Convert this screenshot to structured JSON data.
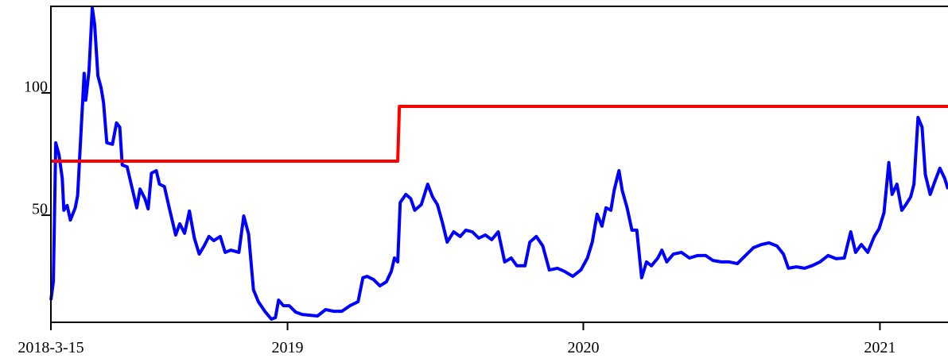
{
  "chart_data": {
    "type": "line",
    "xlim": [
      "2018-03-15",
      "2021-03-26"
    ],
    "xticks": [
      {
        "value": "2018-03-15",
        "label": "2018-3-15"
      },
      {
        "value": "2019-01-01",
        "label": "2019"
      },
      {
        "value": "2020-01-01",
        "label": "2020"
      },
      {
        "value": "2021-01-01",
        "label": "2021"
      }
    ],
    "ylim": [
      6.2,
      135.4
    ],
    "yticks": [
      50,
      100
    ],
    "series": [
      {
        "color": "#0000ff",
        "x": [
          "2018-03-15",
          "2018-03-18",
          "2018-03-21",
          "2018-03-25",
          "2018-03-29",
          "2018-03-31",
          "2018-04-04",
          "2018-04-08",
          "2018-04-14",
          "2018-04-17",
          "2018-04-22",
          "2018-04-25",
          "2018-04-27",
          "2018-05-01",
          "2018-05-05",
          "2018-05-08",
          "2018-05-12",
          "2018-05-16",
          "2018-05-19",
          "2018-05-23",
          "2018-05-30",
          "2018-06-04",
          "2018-06-08",
          "2018-06-11",
          "2018-06-17",
          "2018-06-24",
          "2018-06-29",
          "2018-07-03",
          "2018-07-09",
          "2018-07-13",
          "2018-07-17",
          "2018-07-23",
          "2018-07-27",
          "2018-08-02",
          "2018-08-08",
          "2018-08-16",
          "2018-08-21",
          "2018-08-27",
          "2018-09-02",
          "2018-09-08",
          "2018-09-14",
          "2018-09-20",
          "2018-09-26",
          "2018-10-02",
          "2018-10-10",
          "2018-10-16",
          "2018-10-23",
          "2018-11-02",
          "2018-11-08",
          "2018-11-14",
          "2018-11-20",
          "2018-11-26",
          "2018-12-04",
          "2018-12-12",
          "2018-12-17",
          "2018-12-21",
          "2018-12-27",
          "2019-01-03",
          "2019-01-11",
          "2019-01-19",
          "2019-01-29",
          "2019-02-07",
          "2019-02-17",
          "2019-02-27",
          "2019-03-09",
          "2019-03-19",
          "2019-03-29",
          "2019-04-04",
          "2019-04-09",
          "2019-04-17",
          "2019-04-25",
          "2019-05-03",
          "2019-05-09",
          "2019-05-13",
          "2019-05-17",
          "2019-05-20",
          "2019-05-27",
          "2019-06-02",
          "2019-06-07",
          "2019-06-15",
          "2019-06-23",
          "2019-06-29",
          "2019-07-05",
          "2019-07-11",
          "2019-07-17",
          "2019-07-25",
          "2019-08-02",
          "2019-08-09",
          "2019-08-17",
          "2019-08-25",
          "2019-09-02",
          "2019-09-10",
          "2019-09-18",
          "2019-09-26",
          "2019-10-04",
          "2019-10-11",
          "2019-10-21",
          "2019-10-27",
          "2019-11-04",
          "2019-11-12",
          "2019-11-20",
          "2019-11-30",
          "2019-12-09",
          "2019-12-19",
          "2019-12-29",
          "2020-01-06",
          "2020-01-12",
          "2020-01-18",
          "2020-01-24",
          "2020-01-29",
          "2020-02-04",
          "2020-02-08",
          "2020-02-14",
          "2020-02-18",
          "2020-02-24",
          "2020-03-01",
          "2020-03-07",
          "2020-03-13",
          "2020-03-19",
          "2020-03-25",
          "2020-04-02",
          "2020-04-07",
          "2020-04-13",
          "2020-04-21",
          "2020-05-01",
          "2020-05-11",
          "2020-05-21",
          "2020-05-31",
          "2020-06-09",
          "2020-06-19",
          "2020-06-29",
          "2020-07-09",
          "2020-07-19",
          "2020-07-29",
          "2020-08-08",
          "2020-08-17",
          "2020-08-27",
          "2020-09-04",
          "2020-09-10",
          "2020-09-20",
          "2020-09-30",
          "2020-10-09",
          "2020-10-19",
          "2020-10-29",
          "2020-11-08",
          "2020-11-18",
          "2020-11-26",
          "2020-12-02",
          "2020-12-09",
          "2020-12-17",
          "2020-12-25",
          "2020-12-31",
          "2021-01-06",
          "2021-01-12",
          "2021-01-16",
          "2021-01-22",
          "2021-01-28",
          "2021-02-02",
          "2021-02-08",
          "2021-02-12",
          "2021-02-17",
          "2021-02-22",
          "2021-02-26",
          "2021-03-04",
          "2021-03-10",
          "2021-03-16",
          "2021-03-22",
          "2021-03-26"
        ],
        "values": [
          15.3,
          22.8,
          79.6,
          74.7,
          65,
          52,
          54,
          48,
          53,
          58,
          89,
          108,
          97,
          109,
          134.8,
          128,
          107,
          102,
          96,
          79.6,
          79,
          87.7,
          86,
          70.5,
          69.8,
          60,
          53,
          60.7,
          56.8,
          52.6,
          67.2,
          68.2,
          62.7,
          61.7,
          53,
          41.9,
          46.5,
          42.6,
          51.7,
          40.6,
          34.1,
          37.4,
          41.3,
          39.6,
          41.3,
          34.8,
          35.7,
          34.8,
          49.7,
          42.2,
          19.5,
          14.6,
          10.7,
          7.5,
          8.1,
          15.3,
          13,
          13,
          10.4,
          9.4,
          9.1,
          8.8,
          11.4,
          10.7,
          10.7,
          13,
          14.6,
          24.4,
          25,
          23.7,
          21.1,
          22.8,
          27,
          32.5,
          30.9,
          55.2,
          58.5,
          56.8,
          52,
          54.3,
          62.7,
          57.5,
          54.3,
          47.1,
          39,
          43.2,
          41.3,
          43.9,
          43.2,
          40.6,
          41.9,
          40,
          43.2,
          30.9,
          32.5,
          29.3,
          29.3,
          39,
          41.3,
          37.4,
          27.6,
          28.3,
          27,
          25,
          27.6,
          32.5,
          39,
          50.4,
          45.5,
          53,
          52,
          60.1,
          68.2,
          60.1,
          53,
          43.9,
          43.9,
          24.4,
          30.9,
          29.3,
          32.5,
          35.7,
          30.9,
          34.1,
          34.8,
          32.5,
          33.5,
          33.5,
          31.5,
          30.9,
          30.9,
          30.2,
          33.5,
          36.7,
          38,
          38.7,
          37.4,
          34.1,
          28.3,
          28.9,
          28.3,
          29.3,
          30.9,
          33.5,
          32.2,
          32.5,
          43.2,
          34.8,
          38,
          34.8,
          41.3,
          44.5,
          51,
          71.5,
          58.5,
          62.7,
          52,
          54.3,
          57.5,
          62.7,
          90,
          86,
          66.6,
          58.5,
          64,
          69.2,
          65,
          60.7
        ]
      },
      {
        "color": "#ff0000",
        "x": [
          "2018-03-15",
          "2019-05-17",
          "2019-05-19",
          "2021-03-26"
        ],
        "values": [
          72.1,
          72.1,
          94.5,
          94.5
        ]
      }
    ]
  }
}
